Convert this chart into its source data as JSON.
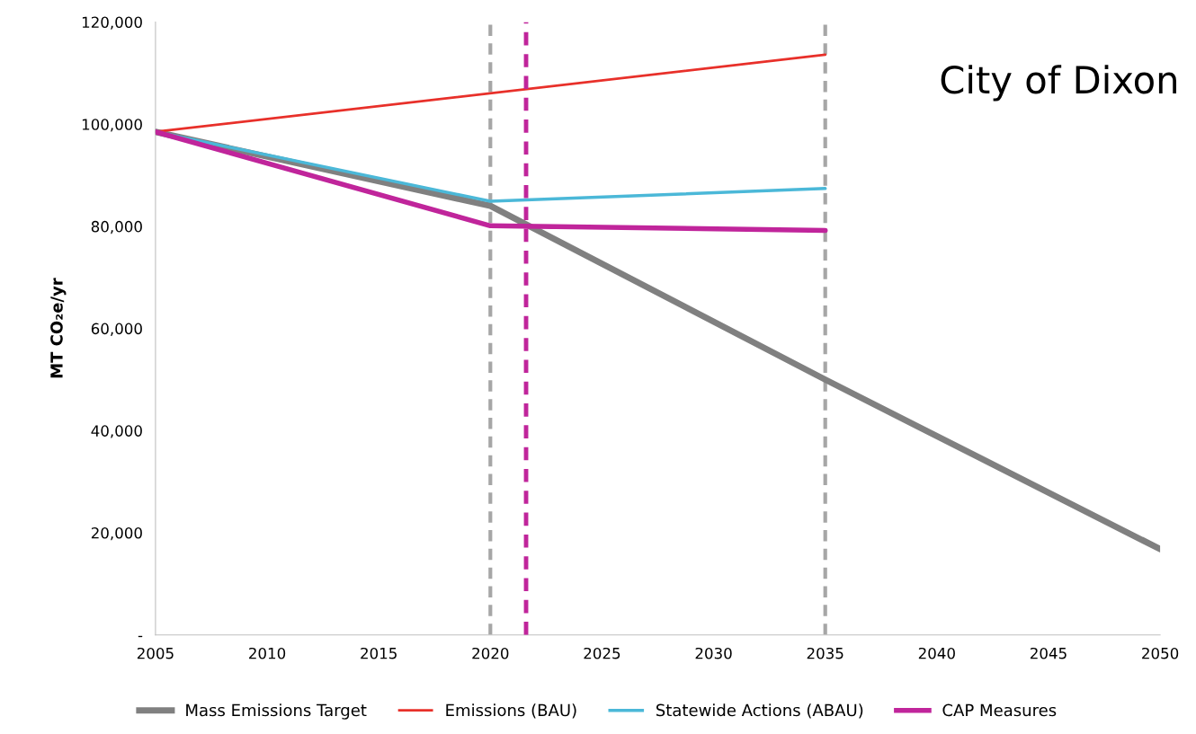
{
  "chart_data": {
    "type": "line",
    "ylabel": "MT CO₂e/yr",
    "annotations": [
      "City of Dixon"
    ],
    "xlim": [
      2005,
      2050
    ],
    "xticks": [
      2005,
      2010,
      2015,
      2020,
      2025,
      2030,
      2035,
      2040,
      2045,
      2050
    ],
    "ylim": [
      0,
      120000
    ],
    "yticks": [
      {
        "value": 0,
        "label": "-"
      },
      {
        "value": 20000,
        "label": "20,000"
      },
      {
        "value": 40000,
        "label": "40,000"
      },
      {
        "value": 60000,
        "label": "60,000"
      },
      {
        "value": 80000,
        "label": "80,000"
      },
      {
        "value": 100000,
        "label": "100,000"
      },
      {
        "value": 120000,
        "label": "120,000"
      }
    ],
    "grid": false,
    "legend": "bottom",
    "marker": "none",
    "line_style": "solid",
    "series": [
      {
        "name": "Mass Emissions Target",
        "color": "#808080",
        "x": [
          2005,
          2020,
          2035,
          2050
        ],
        "values": [
          98500,
          84000,
          50000,
          16800
        ]
      },
      {
        "name": "Emissions (BAU)",
        "color": "#e8302a",
        "x": [
          2005,
          2035
        ],
        "values": [
          98500,
          113600
        ]
      },
      {
        "name": "Statewide Actions (ABAU)",
        "color": "#4bb8d8",
        "x": [
          2005,
          2020,
          2035
        ],
        "values": [
          98500,
          84900,
          87400
        ]
      },
      {
        "name": "CAP Measures",
        "color": "#c0259b",
        "x": [
          2005,
          2020,
          2035
        ],
        "values": [
          98500,
          80100,
          79200
        ]
      }
    ],
    "ref_lines": [
      {
        "axis": "x",
        "value": 2020,
        "color": "#a6a6a6",
        "line_style": "dashed"
      },
      {
        "axis": "x",
        "value": 2035,
        "color": "#a6a6a6",
        "line_style": "dashed"
      },
      {
        "axis": "x",
        "value": 2021.6,
        "color": "#c0259b",
        "line_style": "dashed"
      }
    ]
  }
}
